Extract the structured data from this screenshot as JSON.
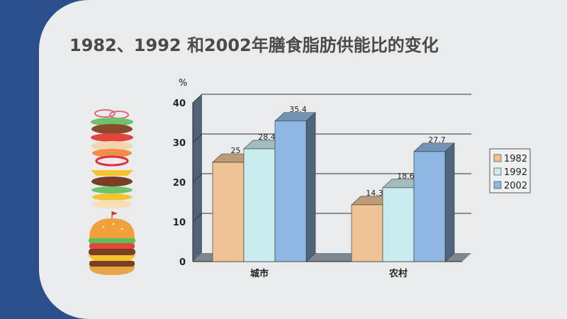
{
  "slide": {
    "title": "1982、1992 和2002年膳食脂肪供能比的变化"
  },
  "colors": {
    "background_blue": "#2b4f8c",
    "slide_bg": "#e9ebec",
    "series_1982": "#efc396",
    "series_1992": "#c9ecee",
    "series_2002": "#8fb7e4",
    "chart_wall": "#5a6e86"
  },
  "illustrations": [
    "burger-layers-icon",
    "burger-icon"
  ],
  "chart_data": {
    "type": "bar",
    "style": "3d-clustered-column",
    "title": "",
    "xlabel": "",
    "ylabel": "%",
    "categories": [
      "城市",
      "农村"
    ],
    "series": [
      {
        "name": "1982",
        "values": [
          25,
          14.3
        ],
        "color": "#efc396"
      },
      {
        "name": "1992",
        "values": [
          28.4,
          18.6
        ],
        "color": "#c9ecee"
      },
      {
        "name": "2002",
        "values": [
          35.4,
          27.7
        ],
        "color": "#8fb7e4"
      }
    ],
    "data_labels": [
      [
        "25",
        "28.4",
        "35.4"
      ],
      [
        "14.3",
        "18.6",
        "27.7"
      ]
    ],
    "ylim": [
      0,
      40
    ],
    "yticks": [
      "0",
      "10",
      "20",
      "30",
      "40"
    ],
    "grid": true,
    "legend_position": "right"
  }
}
